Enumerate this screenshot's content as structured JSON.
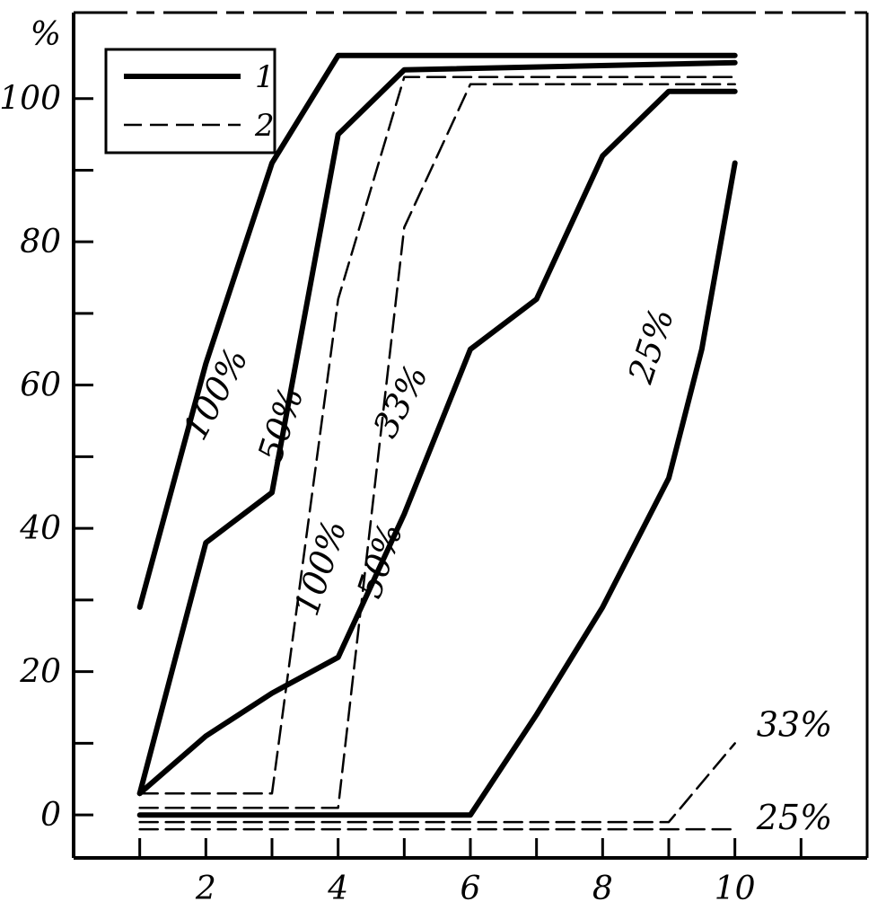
{
  "chart_data": {
    "type": "line",
    "title": "",
    "xlabel": "",
    "ylabel": "%",
    "xlim": [
      0,
      12
    ],
    "ylim": [
      -6,
      112
    ],
    "x_ticks": [
      1,
      2,
      3,
      4,
      5,
      6,
      7,
      8,
      9,
      10,
      11
    ],
    "x_tick_labels": [
      {
        "x": 2,
        "label": "2"
      },
      {
        "x": 4,
        "label": "4"
      },
      {
        "x": 6,
        "label": "6"
      },
      {
        "x": 8,
        "label": "8"
      },
      {
        "x": 10,
        "label": "10"
      }
    ],
    "y_ticks": [
      0,
      10,
      20,
      30,
      40,
      50,
      60,
      70,
      80,
      90,
      100
    ],
    "y_tick_labels": [
      {
        "y": 0,
        "label": "0"
      },
      {
        "y": 20,
        "label": "20"
      },
      {
        "y": 40,
        "label": "40"
      },
      {
        "y": 60,
        "label": "60"
      },
      {
        "y": 80,
        "label": "80"
      },
      {
        "y": 100,
        "label": "100"
      }
    ],
    "grid": false,
    "legend": {
      "placement": "top-left",
      "entries": [
        {
          "label": "1",
          "style": "solid"
        },
        {
          "label": "2",
          "style": "dashed"
        }
      ]
    },
    "series": [
      {
        "style": "solid",
        "label": "100%",
        "label_x": 2.3,
        "label_y": 58,
        "label_angle": -62,
        "points": [
          [
            1,
            29
          ],
          [
            2,
            63
          ],
          [
            3,
            91
          ],
          [
            4,
            106
          ],
          [
            10,
            106
          ]
        ]
      },
      {
        "style": "solid",
        "label": "50%",
        "label_x": 3.3,
        "label_y": 54,
        "label_angle": -72,
        "points": [
          [
            1,
            3
          ],
          [
            2,
            38
          ],
          [
            3,
            45
          ],
          [
            4,
            95
          ],
          [
            5,
            104
          ],
          [
            10,
            105
          ]
        ]
      },
      {
        "style": "solid",
        "label": "33%",
        "label_x": 5.1,
        "label_y": 57,
        "label_angle": -62,
        "points": [
          [
            1,
            3
          ],
          [
            2,
            11
          ],
          [
            3,
            17
          ],
          [
            4,
            22
          ],
          [
            5,
            42
          ],
          [
            6,
            65
          ],
          [
            7,
            72
          ],
          [
            8,
            92
          ],
          [
            9,
            101
          ],
          [
            10,
            101
          ]
        ]
      },
      {
        "style": "solid",
        "label": "25%",
        "label_x": 8.9,
        "label_y": 65,
        "label_angle": -72,
        "points": [
          [
            1,
            0
          ],
          [
            6,
            0
          ],
          [
            7,
            14
          ],
          [
            8,
            29
          ],
          [
            9,
            47
          ],
          [
            9.5,
            65
          ],
          [
            10,
            91
          ]
        ]
      },
      {
        "style": "dashed",
        "label": "100%",
        "label_x": 3.9,
        "label_y": 34,
        "label_angle": -72,
        "points": [
          [
            1,
            3
          ],
          [
            3,
            3
          ],
          [
            4,
            72
          ],
          [
            5,
            103
          ],
          [
            10,
            103
          ]
        ]
      },
      {
        "style": "dashed",
        "label": "50%",
        "label_x": 4.8,
        "label_y": 35,
        "label_angle": -72,
        "points": [
          [
            1,
            1
          ],
          [
            4,
            1
          ],
          [
            5,
            82
          ],
          [
            6,
            102
          ],
          [
            10,
            102
          ]
        ]
      },
      {
        "style": "dashed",
        "label": "33%",
        "label_x": 10.9,
        "label_y": 11,
        "label_angle": 0,
        "points": [
          [
            1,
            -1
          ],
          [
            9,
            -1
          ],
          [
            10,
            10
          ]
        ]
      },
      {
        "style": "dashed",
        "label": "25%",
        "label_x": 10.9,
        "label_y": -2,
        "label_angle": 0,
        "points": [
          [
            1,
            -2
          ],
          [
            10,
            -2
          ]
        ]
      }
    ]
  }
}
